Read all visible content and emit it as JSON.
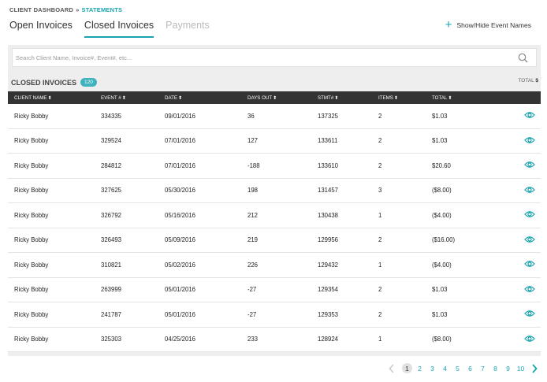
{
  "breadcrumb": {
    "root": "CLIENT DASHBOARD",
    "separator": "»",
    "current": "STATEMENTS"
  },
  "tabs": [
    {
      "label": "Open Invoices"
    },
    {
      "label": "Closed Invoices"
    },
    {
      "label": "Payments"
    }
  ],
  "toggle_events": {
    "icon": "+",
    "label": "Show/Hide Event Names"
  },
  "search": {
    "placeholder": "Search Client Name, Invoice#, Event#, etc..."
  },
  "section": {
    "title": "CLOSED INVOICES",
    "count": "120",
    "total_label": "TOTAL",
    "total_currency": "$"
  },
  "columns": [
    {
      "label": "CLIENT NAME",
      "sort": "⬍"
    },
    {
      "label": "EVENT #",
      "sort": "⬍"
    },
    {
      "label": "DATE",
      "sort": "⬍"
    },
    {
      "label": "DAYS OUT",
      "sort": "⬍"
    },
    {
      "label": "STMT#",
      "sort": "⬍"
    },
    {
      "label": "ITEMS",
      "sort": "⬍"
    },
    {
      "label": "TOTAL",
      "sort": "⬍"
    }
  ],
  "rows": [
    {
      "client": "Ricky Bobby",
      "event": "334335",
      "date": "09/01/2016",
      "days_out": "36",
      "stmt": "137325",
      "items": "2",
      "total": "$1.03"
    },
    {
      "client": "Ricky Bobby",
      "event": "329524",
      "date": "07/01/2016",
      "days_out": "127",
      "stmt": "133611",
      "items": "2",
      "total": "$1.03"
    },
    {
      "client": "Ricky Bobby",
      "event": "284812",
      "date": "07/01/2016",
      "days_out": "-188",
      "stmt": "133610",
      "items": "2",
      "total": "$20.60"
    },
    {
      "client": "Ricky Bobby",
      "event": "327625",
      "date": "05/30/2016",
      "days_out": "198",
      "stmt": "131457",
      "items": "3",
      "total": "($8.00)"
    },
    {
      "client": "Ricky Bobby",
      "event": "326792",
      "date": "05/16/2016",
      "days_out": "212",
      "stmt": "130438",
      "items": "1",
      "total": "($4.00)"
    },
    {
      "client": "Ricky Bobby",
      "event": "326493",
      "date": "05/09/2016",
      "days_out": "219",
      "stmt": "129956",
      "items": "2",
      "total": "($16.00)"
    },
    {
      "client": "Ricky Bobby",
      "event": "310821",
      "date": "05/02/2016",
      "days_out": "226",
      "stmt": "129432",
      "items": "1",
      "total": "($4.00)"
    },
    {
      "client": "Ricky Bobby",
      "event": "263999",
      "date": "05/01/2016",
      "days_out": "-27",
      "stmt": "129354",
      "items": "2",
      "total": "$1.03"
    },
    {
      "client": "Ricky Bobby",
      "event": "241787",
      "date": "05/01/2016",
      "days_out": "-27",
      "stmt": "129353",
      "items": "2",
      "total": "$1.03"
    },
    {
      "client": "Ricky Bobby",
      "event": "325303",
      "date": "04/25/2016",
      "days_out": "233",
      "stmt": "128924",
      "items": "1",
      "total": "($8.00)"
    }
  ],
  "pagination": {
    "current": "1",
    "pages": [
      "1",
      "2",
      "3",
      "4",
      "5",
      "6",
      "7",
      "8",
      "9",
      "10"
    ]
  },
  "colors": {
    "accent": "#1aa3b0",
    "header_bg": "#333333",
    "panel_bg": "#eeeeee"
  },
  "icons": {
    "search": "search-icon",
    "view": "eye-icon",
    "prev": "chevron-left-icon",
    "next": "chevron-right-icon"
  }
}
